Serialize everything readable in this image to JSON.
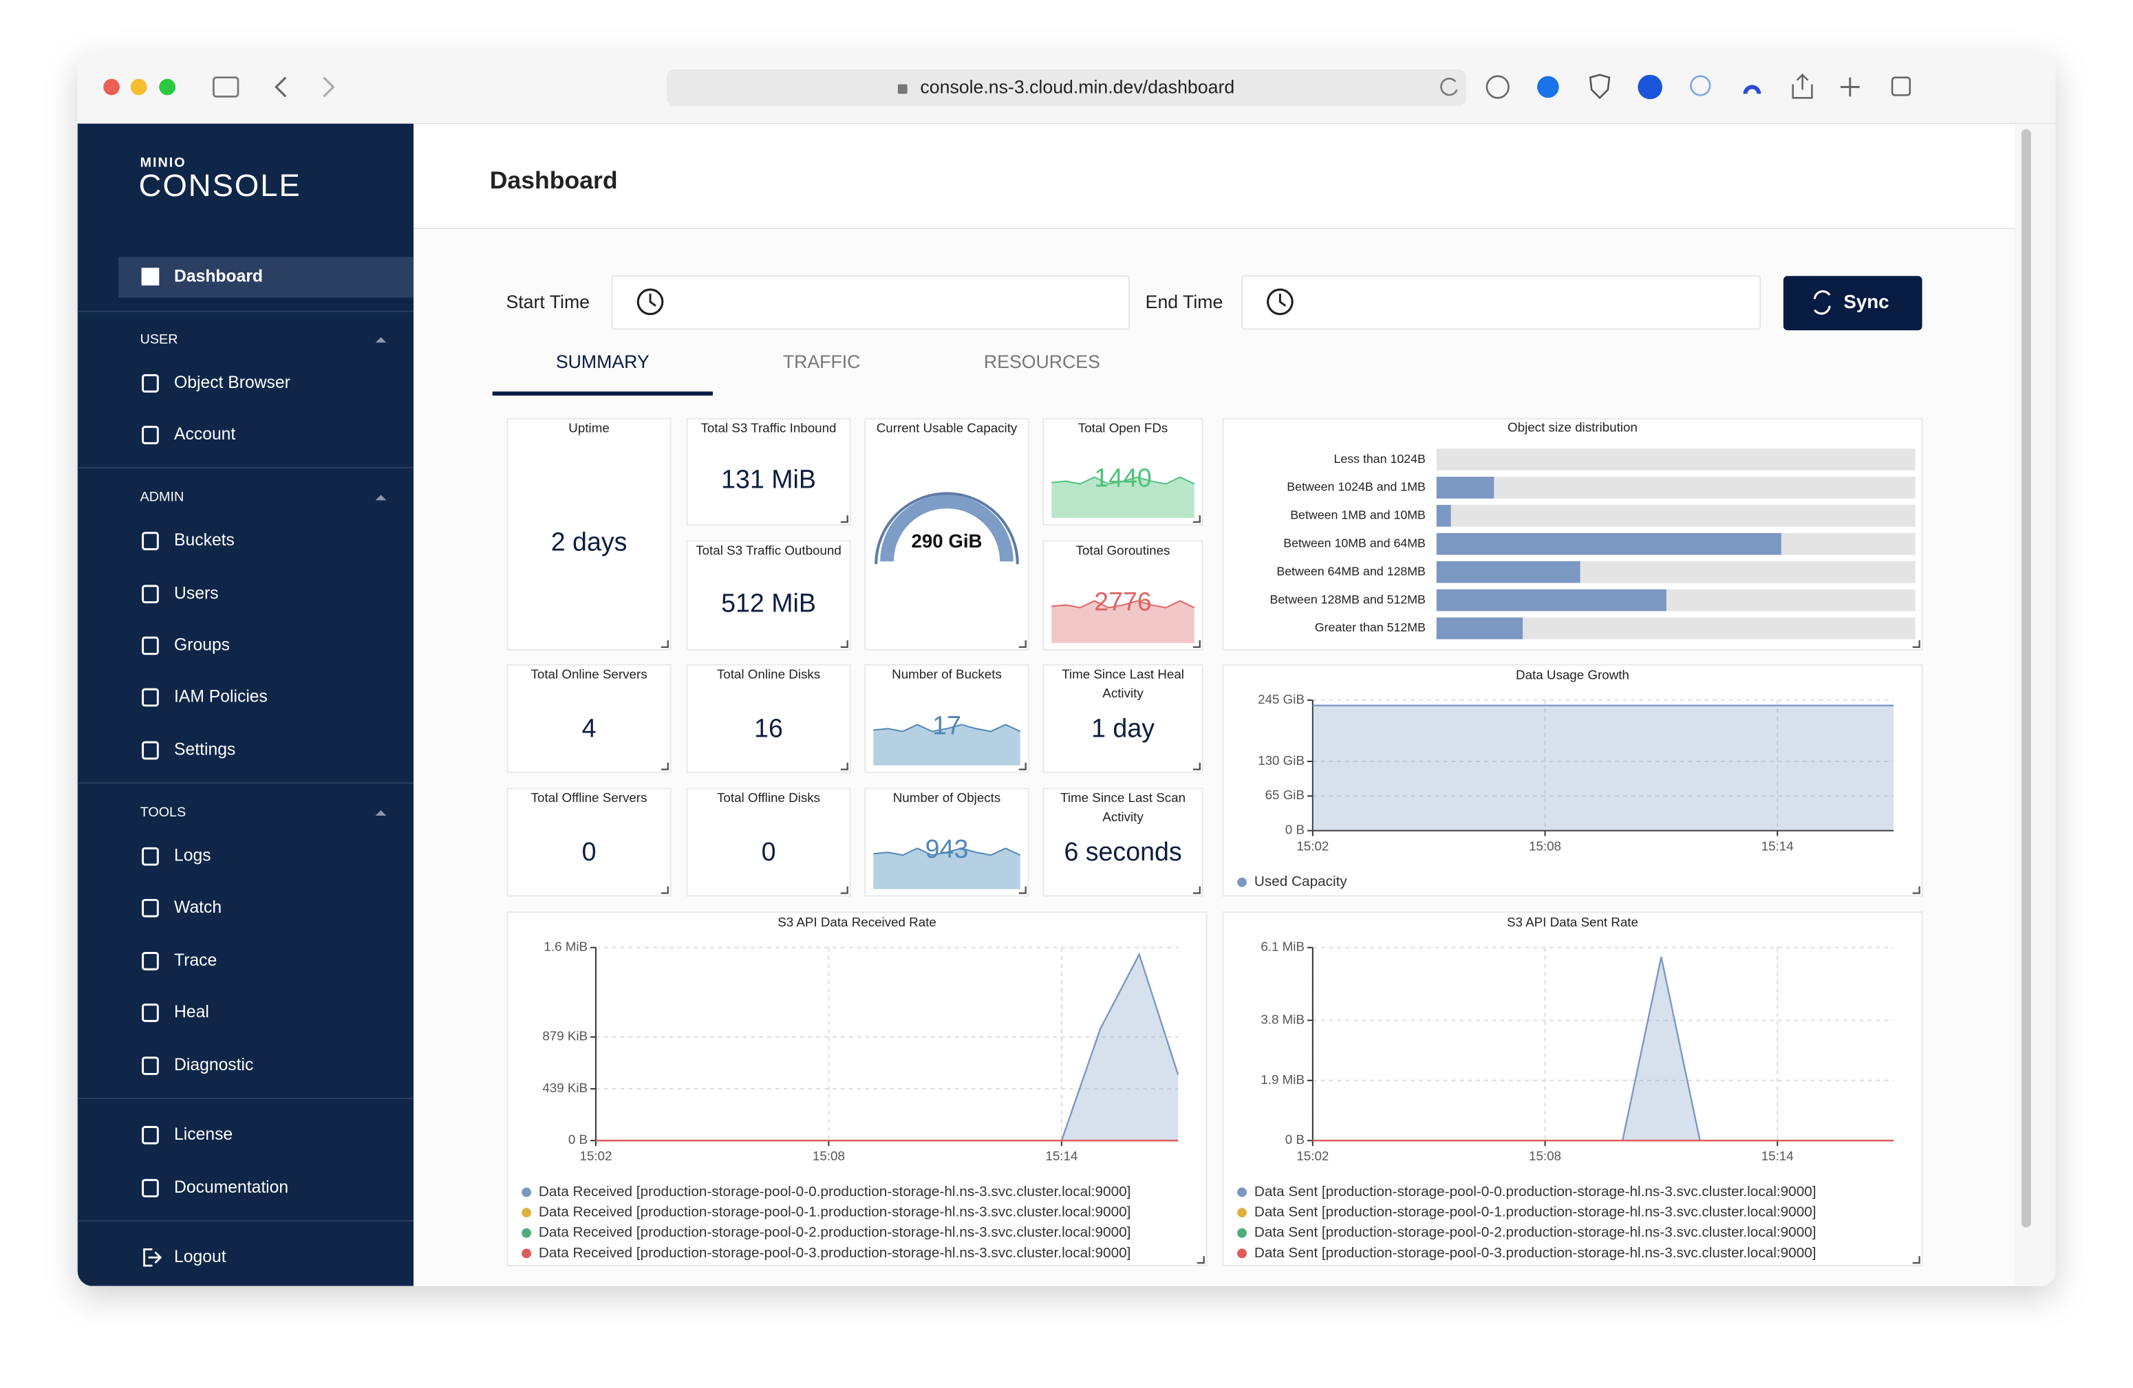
{
  "browser": {
    "url": "console.ns-3.cloud.min.dev/dashboard"
  },
  "sidebar": {
    "logo_top": "MINIO",
    "logo": "CONSOLE",
    "active": "Dashboard",
    "sections": [
      {
        "title": "USER",
        "items": [
          "Object Browser",
          "Account"
        ]
      },
      {
        "title": "ADMIN",
        "items": [
          "Buckets",
          "Users",
          "Groups",
          "IAM Policies",
          "Settings"
        ]
      },
      {
        "title": "TOOLS",
        "items": [
          "Logs",
          "Watch",
          "Trace",
          "Heal",
          "Diagnostic"
        ]
      }
    ],
    "footer": [
      "License",
      "Documentation"
    ],
    "logout": "Logout"
  },
  "header": {
    "title": "Dashboard"
  },
  "filters": {
    "start_label": "Start Time",
    "end_label": "End Time",
    "sync": "Sync"
  },
  "tabs": [
    "SUMMARY",
    "TRAFFIC",
    "RESOURCES"
  ],
  "cards": [
    {
      "title": "Uptime",
      "value": "2 days"
    },
    {
      "title": "Total S3 Traffic Inbound",
      "value": "131 MiB"
    },
    {
      "title": "Total S3 Traffic Outbound",
      "value": "512 MiB"
    },
    {
      "title": "Current Usable Capacity",
      "value": "290 GiB"
    },
    {
      "title": "Total Open FDs",
      "value": "1440"
    },
    {
      "title": "Total Goroutines",
      "value": "2776"
    },
    {
      "title": "Total Online Servers",
      "value": "4"
    },
    {
      "title": "Total Online Disks",
      "value": "16"
    },
    {
      "title": "Number of Buckets",
      "value": "17"
    },
    {
      "title": "Time Since Last Heal Activity",
      "value": "1 day"
    },
    {
      "title": "Total Offline Servers",
      "value": "0"
    },
    {
      "title": "Total Offline Disks",
      "value": "0"
    },
    {
      "title": "Number of Objects",
      "value": "943"
    },
    {
      "title": "Time Since Last Scan Activity",
      "value": "6 seconds"
    }
  ],
  "object_size": {
    "type": "bar",
    "title": "Object size distribution",
    "color": "#7b98c2",
    "categories": [
      "Less than 1024B",
      "Between 1024B and 1MB",
      "Between 1MB and 10MB",
      "Between 10MB and 64MB",
      "Between 64MB and 128MB",
      "Between 128MB and 512MB",
      "Greater than 512MB"
    ],
    "values": [
      0,
      12,
      3,
      72,
      30,
      48,
      18
    ],
    "xlim": [
      0,
      100
    ]
  },
  "usage_growth": {
    "type": "area",
    "title": "Data Usage Growth",
    "x": [
      "15:02",
      "15:03",
      "15:04",
      "15:05",
      "15:06",
      "15:07",
      "15:08",
      "15:09",
      "15:10",
      "15:11",
      "15:12",
      "15:13",
      "15:14",
      "15:15",
      "15:16",
      "15:17"
    ],
    "xlim": [
      "15:02",
      "15:17"
    ],
    "xticks": [
      "15:02",
      "15:08",
      "15:14"
    ],
    "ylim": [
      0,
      245
    ],
    "yticks": [
      {
        "value": 0,
        "label": "0 B"
      },
      {
        "value": 65,
        "label": "65 GiB"
      },
      {
        "value": 130,
        "label": "130 GiB"
      },
      {
        "value": 245,
        "label": "245 GiB"
      }
    ],
    "grid": true,
    "series": [
      {
        "name": "Used Capacity",
        "color": "#7b98c2",
        "values": [
          235,
          235,
          235,
          235,
          235,
          235,
          235,
          235,
          235,
          235,
          235,
          235,
          235,
          235,
          235,
          235
        ]
      }
    ]
  },
  "received": {
    "type": "area",
    "title": "S3 API Data Received Rate",
    "x": [
      "15:02",
      "15:03",
      "15:04",
      "15:05",
      "15:06",
      "15:07",
      "15:08",
      "15:09",
      "15:10",
      "15:11",
      "15:12",
      "15:13",
      "15:14",
      "15:15",
      "15:16",
      "15:17"
    ],
    "xlim": [
      "15:02",
      "15:17"
    ],
    "xticks": [
      "15:02",
      "15:08",
      "15:14"
    ],
    "ylim": [
      0,
      1638
    ],
    "yticks": [
      {
        "value": 0,
        "label": "0 B"
      },
      {
        "value": 439,
        "label": "439 KiB"
      },
      {
        "value": 879,
        "label": "879 KiB"
      },
      {
        "value": 1638,
        "label": "1.6 MiB"
      }
    ],
    "grid": true,
    "series": [
      {
        "name": "Data Received [production-storage-pool-0-0.production-storage-hl.ns-3.svc.cluster.local:9000]",
        "color": "#7b98c2",
        "values": [
          0,
          0,
          0,
          0,
          0,
          0,
          0,
          0,
          0,
          0,
          0,
          0,
          0,
          950,
          1580,
          560
        ]
      },
      {
        "name": "Data Received [production-storage-pool-0-1.production-storage-hl.ns-3.svc.cluster.local:9000]",
        "color": "#e0b040",
        "values": [
          0,
          0,
          0,
          0,
          0,
          0,
          0,
          0,
          0,
          0,
          0,
          0,
          0,
          0,
          0,
          0
        ]
      },
      {
        "name": "Data Received [production-storage-pool-0-2.production-storage-hl.ns-3.svc.cluster.local:9000]",
        "color": "#4caf7a",
        "values": [
          0,
          0,
          0,
          0,
          0,
          0,
          0,
          0,
          0,
          0,
          0,
          0,
          0,
          0,
          0,
          0
        ]
      },
      {
        "name": "Data Received [production-storage-pool-0-3.production-storage-hl.ns-3.svc.cluster.local:9000]",
        "color": "#e05a5a",
        "values": [
          0,
          0,
          0,
          0,
          0,
          0,
          0,
          0,
          0,
          0,
          0,
          0,
          0,
          0,
          0,
          0
        ]
      }
    ]
  },
  "sent": {
    "type": "area",
    "title": "S3 API Data Sent Rate",
    "x": [
      "15:02",
      "15:03",
      "15:04",
      "15:05",
      "15:06",
      "15:07",
      "15:08",
      "15:09",
      "15:10",
      "15:11",
      "15:12",
      "15:13",
      "15:14",
      "15:15",
      "15:16",
      "15:17"
    ],
    "xlim": [
      "15:02",
      "15:17"
    ],
    "xticks": [
      "15:02",
      "15:08",
      "15:14"
    ],
    "ylim": [
      0,
      6.1
    ],
    "yticks": [
      {
        "value": 0,
        "label": "0 B"
      },
      {
        "value": 1.9,
        "label": "1.9 MiB"
      },
      {
        "value": 3.8,
        "label": "3.8 MiB"
      },
      {
        "value": 6.1,
        "label": "6.1 MiB"
      }
    ],
    "grid": true,
    "series": [
      {
        "name": "Data Sent [production-storage-pool-0-0.production-storage-hl.ns-3.svc.cluster.local:9000]",
        "color": "#7b98c2",
        "values": [
          0,
          0,
          0,
          0,
          0,
          0,
          0,
          0,
          0,
          5.8,
          0,
          0,
          0,
          0,
          0,
          0
        ]
      },
      {
        "name": "Data Sent [production-storage-pool-0-1.production-storage-hl.ns-3.svc.cluster.local:9000]",
        "color": "#e0b040",
        "values": [
          0,
          0,
          0,
          0,
          0,
          0,
          0,
          0,
          0,
          0,
          0,
          0,
          0,
          0,
          0,
          0
        ]
      },
      {
        "name": "Data Sent [production-storage-pool-0-2.production-storage-hl.ns-3.svc.cluster.local:9000]",
        "color": "#4caf7a",
        "values": [
          0,
          0,
          0,
          0,
          0,
          0,
          0,
          0,
          0,
          0,
          0,
          0,
          0,
          0,
          0,
          0
        ]
      },
      {
        "name": "Data Sent [production-storage-pool-0-3.production-storage-hl.ns-3.svc.cluster.local:9000]",
        "color": "#e05a5a",
        "values": [
          0,
          0,
          0,
          0,
          0,
          0,
          0,
          0,
          0,
          0,
          0,
          0,
          0,
          0,
          0,
          0
        ]
      }
    ]
  }
}
